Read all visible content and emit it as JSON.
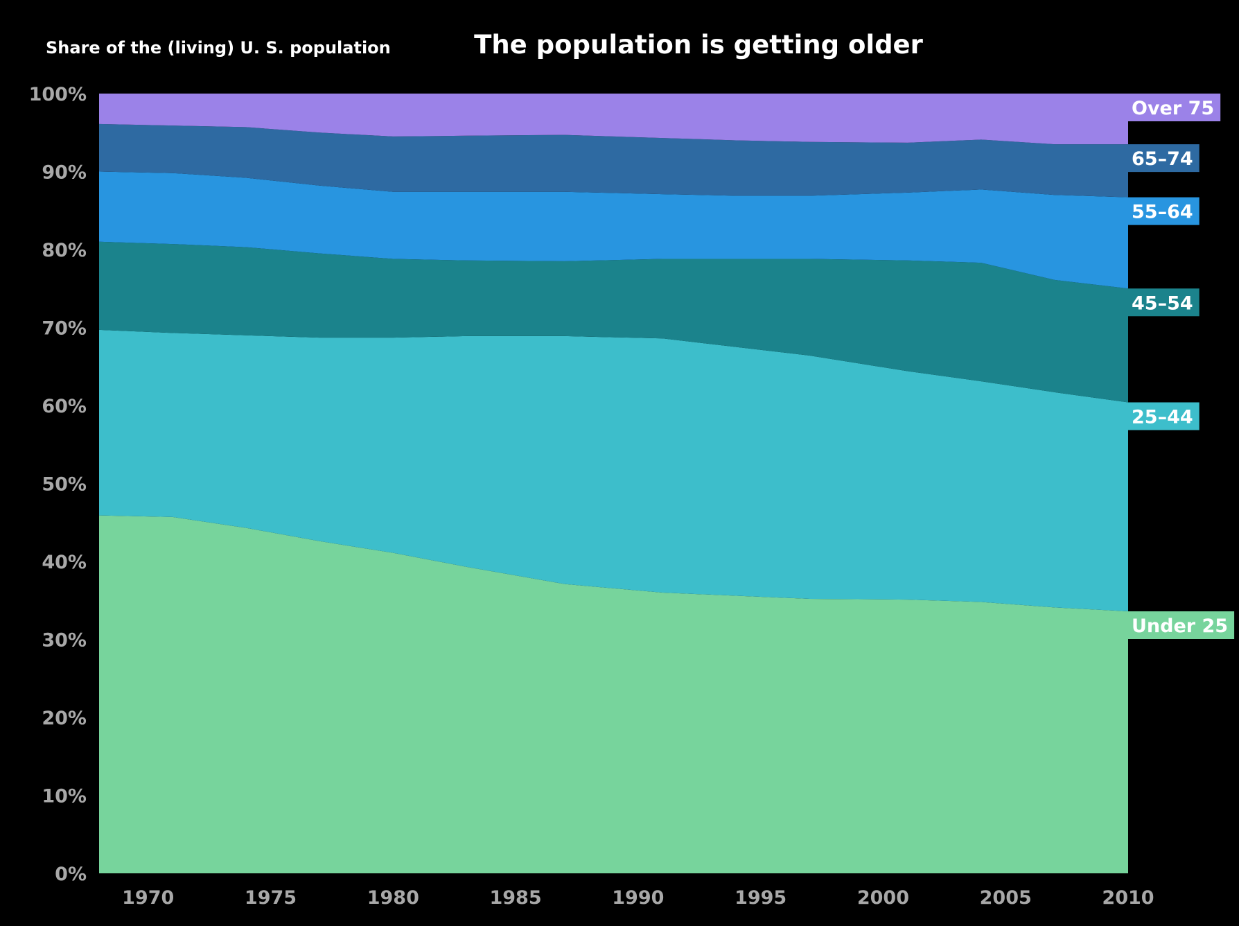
{
  "chart_data": {
    "type": "area",
    "stacked": true,
    "normalized": true,
    "title": "The population is getting older",
    "subtitle": "Share of the (living) U. S. population",
    "xlim": [
      1968,
      2010
    ],
    "ylim": [
      0,
      100
    ],
    "y_ticks": [
      "0%",
      "10%",
      "20%",
      "30%",
      "40%",
      "50%",
      "60%",
      "70%",
      "80%",
      "90%",
      "100%"
    ],
    "x_ticks": [
      "1970",
      "1975",
      "1980",
      "1985",
      "1990",
      "1995",
      "2000",
      "2005",
      "2010"
    ],
    "grid": false,
    "legend": "direct labels at right",
    "x": [
      1968,
      1971,
      1974,
      1977,
      1980,
      1983,
      1987,
      1991,
      1994,
      1997,
      2001,
      2004,
      2007,
      2010
    ],
    "series": [
      {
        "name": "Under 25",
        "color": "#77d49c",
        "values": [
          45.9,
          45.7,
          44.3,
          42.6,
          41.1,
          39.3,
          37.1,
          36.0,
          35.6,
          35.2,
          35.1,
          34.8,
          34.1,
          33.6
        ]
      },
      {
        "name": "25–44",
        "color": "#3dbecb",
        "values": [
          23.8,
          23.6,
          24.7,
          26.1,
          27.6,
          29.6,
          31.8,
          32.6,
          31.9,
          31.2,
          29.3,
          28.3,
          27.6,
          26.8
        ]
      },
      {
        "name": "45–54",
        "color": "#1b838c",
        "values": [
          11.3,
          11.4,
          11.3,
          10.8,
          10.1,
          9.7,
          9.6,
          10.2,
          11.3,
          12.4,
          14.2,
          15.2,
          14.4,
          14.6
        ]
      },
      {
        "name": "55–64",
        "color": "#2895e0",
        "values": [
          9.0,
          9.1,
          8.9,
          8.7,
          8.6,
          8.8,
          8.9,
          8.3,
          8.1,
          8.1,
          8.7,
          9.4,
          10.9,
          11.7
        ]
      },
      {
        "name": "65–74",
        "color": "#2e6aa2",
        "values": [
          6.1,
          6.1,
          6.5,
          6.8,
          7.1,
          7.2,
          7.3,
          7.2,
          7.1,
          6.9,
          6.4,
          6.4,
          6.5,
          6.8
        ]
      },
      {
        "name": "Over 75",
        "color": "#9b82e8",
        "values": [
          3.9,
          4.1,
          4.3,
          4.5,
          4.7,
          5.1,
          5.3,
          5.6,
          5.9,
          6.2,
          6.3,
          6.3,
          6.4,
          6.4
        ]
      }
    ]
  }
}
